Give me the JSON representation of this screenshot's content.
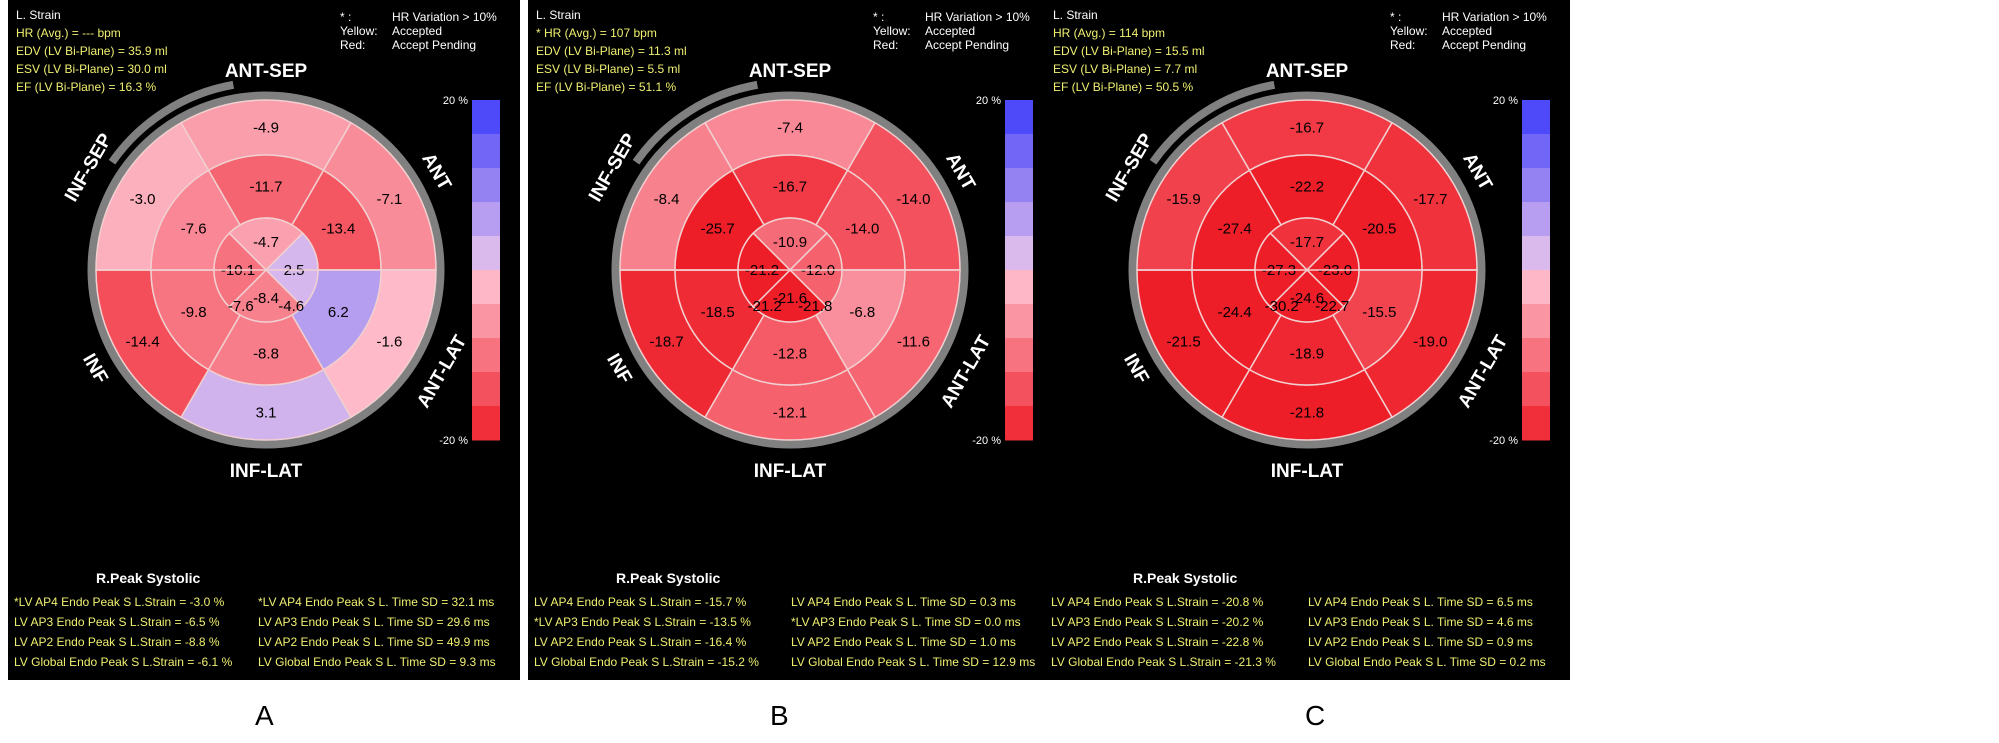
{
  "segment_labels": [
    "ANT-SEP",
    "ANT",
    "ANT-LAT",
    "INF-LAT",
    "INF",
    "INF-SEP"
  ],
  "legend": {
    "key_star": "* :",
    "key_star_text": "HR Variation > 10%",
    "key_yellow": "Yellow:",
    "key_yellow_text": "Accepted",
    "key_red": "Red:",
    "key_red_text": "Accept Pending",
    "scale_max": "20 %",
    "scale_min": "-20 %"
  },
  "rpeak_title": "R.Peak Systolic",
  "colors": {
    "positive_max": "#0000ff",
    "neutral": "#e8e8ff",
    "negative_max": "#ff0000",
    "ring": "#808080",
    "label_text": "#f0f070"
  },
  "panels": [
    {
      "letter": "A",
      "title": "L. Strain",
      "hr": "HR (Avg.) = --- bpm",
      "edv": "EDV (LV Bi-Plane) = 35.9 ml",
      "esv": "ESV (LV Bi-Plane) = 30.0 ml",
      "ef": "EF (LV Bi-Plane) = 16.3 %",
      "stats_left": [
        "*LV AP4 Endo Peak S L.Strain = -3.0 %",
        "LV AP3 Endo Peak S L.Strain = -6.5 %",
        "LV AP2 Endo Peak S L.Strain = -8.8 %",
        "LV Global Endo Peak S L.Strain = -6.1 %"
      ],
      "stats_right": [
        "*LV AP4 Endo Peak S L. Time SD = 32.1 ms",
        "LV AP3 Endo Peak S L. Time SD = 29.6 ms",
        "LV AP2 Endo Peak S L. Time SD = 49.9 ms",
        "LV Global Endo Peak S L. Time SD = 9.3 ms"
      ]
    },
    {
      "letter": "B",
      "title": "L. Strain",
      "hr": "* HR (Avg.) = 107 bpm",
      "edv": "EDV (LV Bi-Plane) = 11.3 ml",
      "esv": "ESV (LV Bi-Plane) = 5.5 ml",
      "ef": "EF (LV Bi-Plane) = 51.1 %",
      "stats_left": [
        "LV AP4 Endo Peak S L.Strain = -15.7 %",
        "*LV AP3 Endo Peak S L.Strain = -13.5 %",
        "LV AP2 Endo Peak S L.Strain = -16.4 %",
        "LV Global Endo Peak S L.Strain = -15.2 %"
      ],
      "stats_right": [
        "LV AP4 Endo Peak S L. Time SD = 0.3 ms",
        "*LV AP3 Endo Peak S L. Time SD = 0.0 ms",
        "LV AP2 Endo Peak S L. Time SD = 1.0 ms",
        "LV Global Endo Peak S L. Time SD = 12.9 ms"
      ]
    },
    {
      "letter": "C",
      "title": "L. Strain",
      "hr": "HR (Avg.) = 114 bpm",
      "edv": "EDV (LV Bi-Plane) = 15.5 ml",
      "esv": "ESV (LV Bi-Plane) = 7.7 ml",
      "ef": "EF (LV Bi-Plane) = 50.5 %",
      "stats_left": [
        "LV AP4 Endo Peak S L.Strain = -20.8 %",
        "LV AP3 Endo Peak S L.Strain = -20.2 %",
        "LV AP2 Endo Peak S L.Strain = -22.8 %",
        "LV Global Endo Peak S L.Strain = -21.3 %"
      ],
      "stats_right": [
        "LV AP4 Endo Peak S L. Time SD = 6.5 ms",
        "LV AP3 Endo Peak S L. Time SD = 4.6 ms",
        "LV AP2 Endo Peak S L. Time SD = 0.9 ms",
        "LV Global Endo Peak S L. Time SD = 0.2 ms"
      ]
    }
  ],
  "chart_data": [
    {
      "type": "heatmap",
      "subtype": "bullseye-17-segment",
      "title": "L. Strain",
      "scale_range": [
        -20,
        20
      ],
      "segment_labels": [
        "ANT-SEP",
        "ANT",
        "ANT-LAT",
        "INF-LAT",
        "INF",
        "INF-SEP"
      ],
      "basal": {
        "ANT-SEP": -4.9,
        "ANT": -7.1,
        "ANT-LAT": -1.6,
        "INF-LAT": 3.1,
        "INF": -14.4,
        "INF-SEP": -3.0
      },
      "mid": {
        "ANT-SEP": -11.7,
        "ANT": -13.4,
        "ANT-LAT": 6.2,
        "INF-LAT": -8.8,
        "INF": -9.8,
        "INF-SEP": -7.6
      },
      "apical": {
        "ANT": -4.7,
        "LAT": 2.5,
        "INF": -8.4,
        "SEP": -10.1
      },
      "apical_extra": [
        -7.6,
        -4.6
      ]
    },
    {
      "type": "heatmap",
      "subtype": "bullseye-17-segment",
      "title": "L. Strain",
      "scale_range": [
        -20,
        20
      ],
      "segment_labels": [
        "ANT-SEP",
        "ANT",
        "ANT-LAT",
        "INF-LAT",
        "INF",
        "INF-SEP"
      ],
      "basal": {
        "ANT-SEP": -7.4,
        "ANT": -14.0,
        "ANT-LAT": -11.6,
        "INF-LAT": -12.1,
        "INF": -18.7,
        "INF-SEP": -8.4
      },
      "mid": {
        "ANT-SEP": -16.7,
        "ANT": -14.0,
        "ANT-LAT": -6.8,
        "INF-LAT": -12.8,
        "INF": -18.5,
        "INF-SEP": -25.7
      },
      "apical": {
        "ANT": -10.9,
        "LAT": -12.0,
        "INF": -21.6,
        "SEP": -21.2
      },
      "apical_extra": [
        -21.2,
        -21.8
      ]
    },
    {
      "type": "heatmap",
      "subtype": "bullseye-17-segment",
      "title": "L. Strain",
      "scale_range": [
        -20,
        20
      ],
      "segment_labels": [
        "ANT-SEP",
        "ANT",
        "ANT-LAT",
        "INF-LAT",
        "INF",
        "INF-SEP"
      ],
      "basal": {
        "ANT-SEP": -16.7,
        "ANT": -17.7,
        "ANT-LAT": -19.0,
        "INF-LAT": -21.8,
        "INF": -21.5,
        "INF-SEP": -15.9
      },
      "mid": {
        "ANT-SEP": -22.2,
        "ANT": -20.5,
        "ANT-LAT": -15.5,
        "INF-LAT": -18.9,
        "INF": -24.4,
        "INF-SEP": -27.4
      },
      "apical": {
        "ANT": -17.7,
        "LAT": -23.0,
        "INF": -24.6,
        "SEP": -27.3
      },
      "apical_extra": [
        -30.2,
        -22.7
      ]
    }
  ]
}
